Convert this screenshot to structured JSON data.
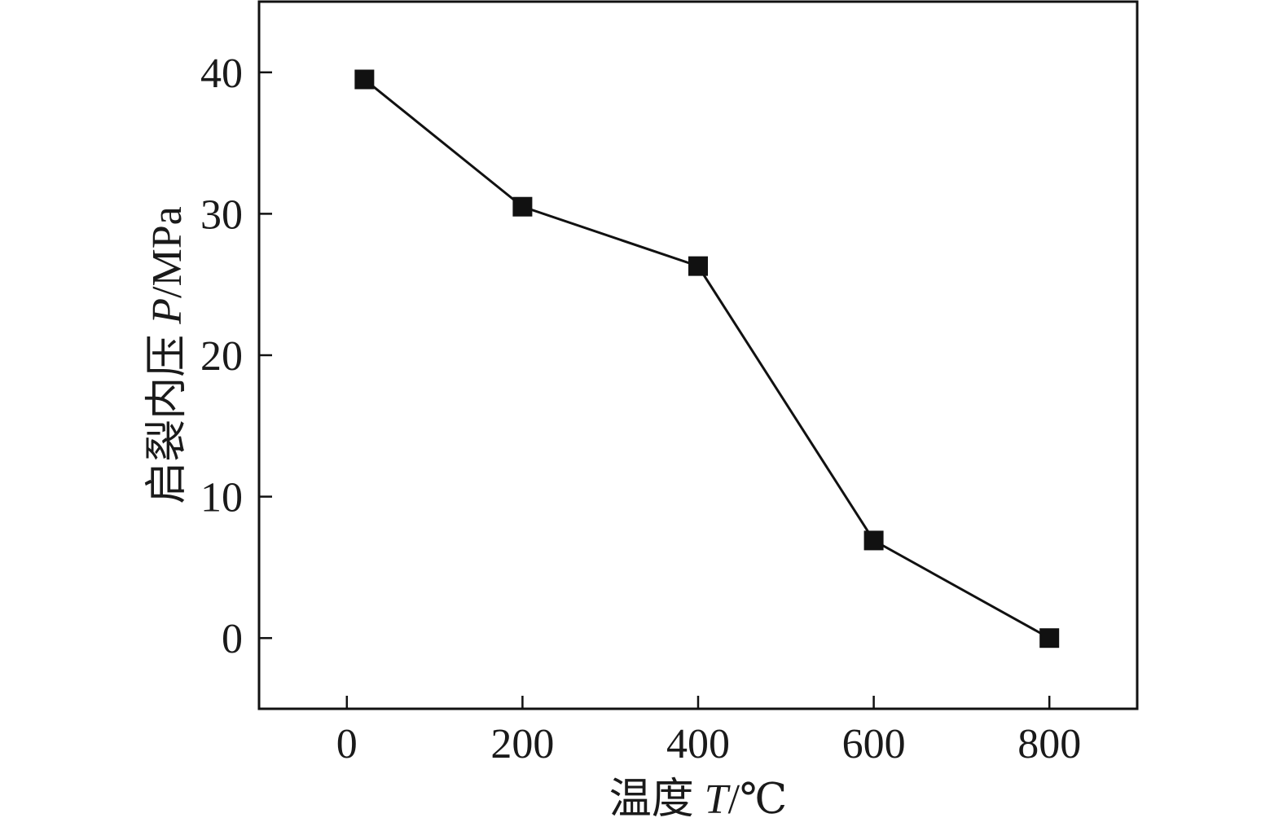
{
  "chart_data": {
    "type": "line",
    "title": "",
    "xlabel": {
      "prefix": "温度 ",
      "symbol": "T",
      "unit": "/℃"
    },
    "ylabel": {
      "prefix": "启裂内压 ",
      "symbol": "P",
      "unit": "/MPa"
    },
    "xlim": [
      -100,
      900
    ],
    "ylim": [
      -5,
      45
    ],
    "x_ticks": [
      0,
      200,
      400,
      600,
      800
    ],
    "y_ticks": [
      0,
      10,
      20,
      30,
      40
    ],
    "grid": false,
    "legend": "none",
    "series": [
      {
        "marker": "square",
        "color": "#111111",
        "x": [
          20,
          200,
          400,
          600,
          800
        ],
        "y": [
          39.5,
          30.5,
          26.3,
          6.9,
          0
        ]
      }
    ]
  }
}
